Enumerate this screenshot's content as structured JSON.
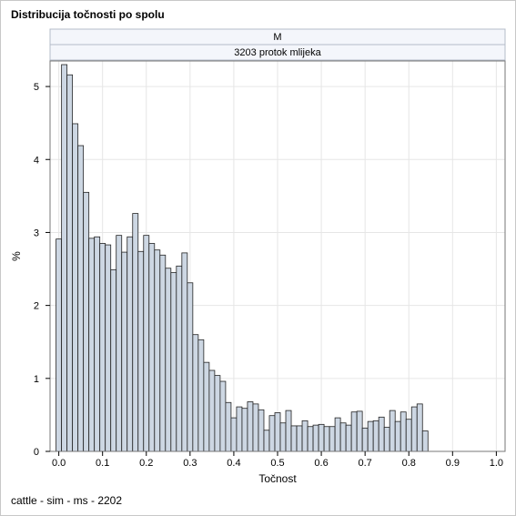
{
  "title": "Distribucija točnosti po spolu",
  "footnote": "cattle - sim - ms - 2202",
  "chart_data": {
    "type": "bar",
    "panel_labels": [
      "M",
      "3203 protok mlijeka"
    ],
    "xlabel": "Točnost",
    "ylabel": "%",
    "xlim": [
      -0.02,
      1.02
    ],
    "ylim": [
      0,
      5.35
    ],
    "xticks": [
      "0.0",
      "0.1",
      "0.2",
      "0.3",
      "0.4",
      "0.5",
      "0.6",
      "0.7",
      "0.8",
      "0.9",
      "1.0"
    ],
    "yticks": [
      "0",
      "1",
      "2",
      "3",
      "4",
      "5"
    ],
    "bin_width": 0.0125,
    "bin_start": -0.00625,
    "values": [
      2.91,
      5.3,
      5.16,
      4.49,
      4.19,
      3.55,
      2.92,
      2.94,
      2.85,
      2.83,
      2.49,
      2.96,
      2.73,
      2.94,
      3.26,
      2.74,
      2.96,
      2.85,
      2.76,
      2.69,
      2.51,
      2.45,
      2.54,
      2.72,
      2.31,
      1.6,
      1.53,
      1.22,
      1.11,
      1.04,
      0.96,
      0.67,
      0.46,
      0.61,
      0.59,
      0.68,
      0.65,
      0.57,
      0.29,
      0.49,
      0.53,
      0.39,
      0.56,
      0.35,
      0.35,
      0.42,
      0.34,
      0.36,
      0.37,
      0.34,
      0.34,
      0.46,
      0.39,
      0.36,
      0.54,
      0.55,
      0.32,
      0.41,
      0.42,
      0.47,
      0.33,
      0.56,
      0.41,
      0.54,
      0.44,
      0.61,
      0.65,
      0.28
    ],
    "bar_fill": "#cdd7e3",
    "bar_stroke": "#222222",
    "grid": true,
    "grid_color": "#e6e6e6",
    "header_fill": "#f4f6fb"
  }
}
